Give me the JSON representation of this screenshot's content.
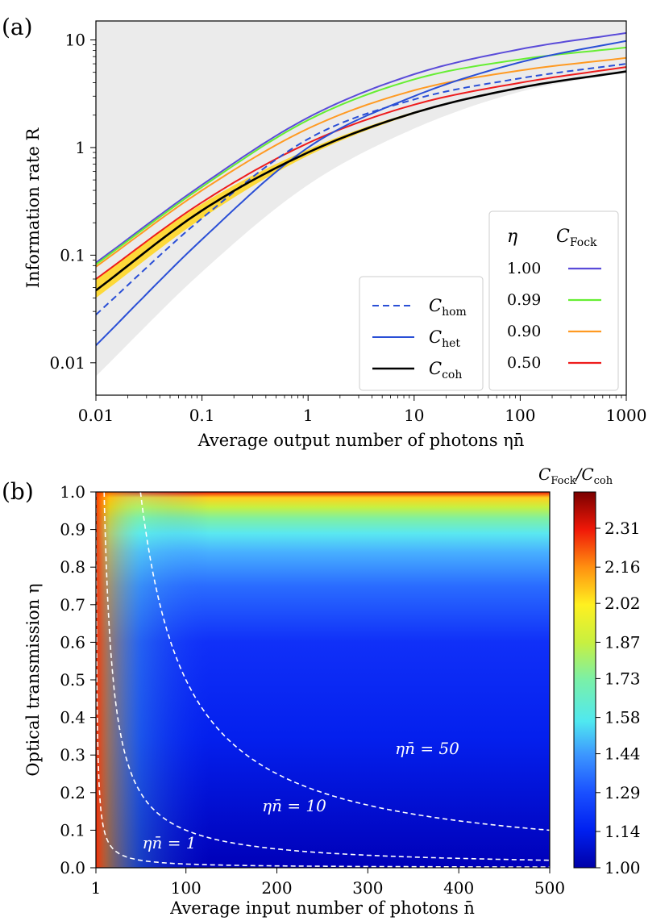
{
  "chart_data": [
    {
      "panel_label": "(a)",
      "type": "line",
      "xscale": "log",
      "yscale": "log",
      "xlim": [
        0.01,
        1000
      ],
      "ylim": [
        0.005,
        15
      ],
      "xlabel": "Average output number of photons ηn̄",
      "ylabel": "Information rate R",
      "xticks": [
        "0.01",
        "0.1",
        "1",
        "10",
        "100",
        "1000"
      ],
      "yticks": [
        "0.01",
        "0.1",
        "1",
        "10"
      ],
      "ytick_values": [
        0.01,
        0.1,
        1,
        10
      ],
      "xtick_values": [
        0.01,
        0.1,
        1,
        10,
        100,
        1000
      ],
      "shading": {
        "gray": "achievable region",
        "yellow": "band around C_coh"
      },
      "legend_fock": {
        "header_eta": "η",
        "header_series": "C",
        "header_sub": "Fock",
        "entries": [
          {
            "eta": "1.00",
            "color": "#5a4bd9"
          },
          {
            "eta": "0.99",
            "color": "#66ee33"
          },
          {
            "eta": "0.90",
            "color": "#ff9a22"
          },
          {
            "eta": "0.50",
            "color": "#ee1c1c"
          }
        ]
      },
      "legend_main": [
        {
          "symbol": "C",
          "sub": "hom",
          "style": "dashed",
          "color": "#2a4fd6"
        },
        {
          "symbol": "C",
          "sub": "het",
          "style": "solid",
          "color": "#2a4fd6"
        },
        {
          "symbol": "C",
          "sub": "coh",
          "style": "solid",
          "color": "#000000"
        }
      ],
      "series": [
        {
          "name": "C_Fock η=1.00",
          "color": "#5a4bd9",
          "x": [
            0.01,
            0.1,
            1,
            10,
            100,
            1000
          ],
          "y": [
            0.085,
            0.45,
            1.9,
            4.8,
            8.2,
            11.6
          ]
        },
        {
          "name": "C_Fock η=0.99",
          "color": "#66ee33",
          "x": [
            0.01,
            0.1,
            1,
            10,
            100,
            1000
          ],
          "y": [
            0.082,
            0.43,
            1.8,
            4.3,
            6.6,
            8.5
          ]
        },
        {
          "name": "C_Fock η=0.90",
          "color": "#ff9a22",
          "x": [
            0.01,
            0.1,
            1,
            10,
            100,
            1000
          ],
          "y": [
            0.078,
            0.4,
            1.5,
            3.4,
            5.2,
            6.8
          ]
        },
        {
          "name": "C_Fock η=0.50",
          "color": "#ee1c1c",
          "x": [
            0.01,
            0.1,
            1,
            10,
            100,
            1000
          ],
          "y": [
            0.06,
            0.31,
            1.1,
            2.5,
            4.0,
            5.6
          ]
        },
        {
          "name": "C_hom",
          "color": "#2a4fd6",
          "dashed": true,
          "x": [
            0.01,
            0.1,
            1,
            10,
            100,
            1000
          ],
          "y": [
            0.028,
            0.22,
            1.2,
            2.8,
            4.4,
            6.0
          ]
        },
        {
          "name": "C_het",
          "color": "#2a4fd6",
          "x": [
            0.01,
            0.1,
            1,
            10,
            100,
            1000
          ],
          "y": [
            0.0145,
            0.14,
            1.0,
            3.0,
            6.2,
            9.8
          ]
        },
        {
          "name": "C_coh",
          "color": "#000000",
          "x": [
            0.01,
            0.1,
            1,
            10,
            100,
            1000
          ],
          "y": [
            0.047,
            0.26,
            0.9,
            2.1,
            3.6,
            5.1
          ]
        }
      ]
    },
    {
      "panel_label": "(b)",
      "type": "heatmap",
      "xlim": [
        1,
        500
      ],
      "ylim": [
        0,
        1
      ],
      "xlabel": "Average input number of photons n̄",
      "ylabel": "Optical transmission η",
      "xticks": [
        "1",
        "100",
        "200",
        "300",
        "400",
        "500"
      ],
      "xtick_values": [
        1,
        100,
        200,
        300,
        400,
        500
      ],
      "yticks": [
        "0.0",
        "0.1",
        "0.2",
        "0.3",
        "0.4",
        "0.5",
        "0.6",
        "0.7",
        "0.8",
        "0.9",
        "1.0"
      ],
      "ytick_values": [
        0,
        0.1,
        0.2,
        0.3,
        0.4,
        0.5,
        0.6,
        0.7,
        0.8,
        0.9,
        1.0
      ],
      "colorbar_title": "C",
      "colorbar_title_sub1": "Fock",
      "colorbar_title_sep": "/C",
      "colorbar_title_sub2": "coh",
      "colorbar_range": [
        1.0,
        2.45
      ],
      "colorbar_ticks": [
        "2.31",
        "2.16",
        "2.02",
        "1.87",
        "1.73",
        "1.58",
        "1.44",
        "1.29",
        "1.14",
        "1.00"
      ],
      "colorbar_tick_values": [
        2.31,
        2.16,
        2.02,
        1.87,
        1.73,
        1.58,
        1.44,
        1.29,
        1.14,
        1.0
      ],
      "contours": [
        {
          "level": 1,
          "label": "ηn̄ = 1"
        },
        {
          "level": 10,
          "label": "ηn̄ = 10"
        },
        {
          "level": 50,
          "label": "ηn̄ = 50"
        }
      ]
    }
  ]
}
